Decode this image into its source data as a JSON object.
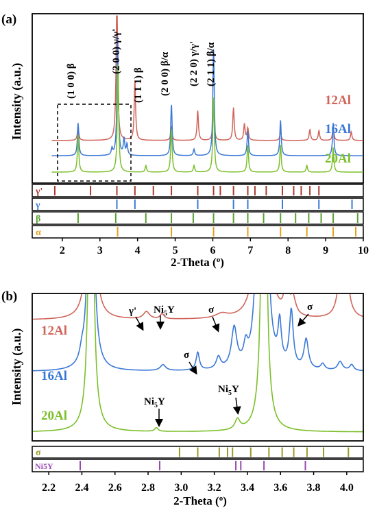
{
  "chart_data": [
    {
      "panel_label": "(a)",
      "type": "line",
      "xlabel": "2-Theta (°)",
      "ylabel": "Intensity (a.u.)",
      "xlim": [
        1.2,
        10.0
      ],
      "xticks": [
        2,
        3,
        4,
        5,
        6,
        7,
        8,
        9,
        10
      ],
      "series": [
        {
          "name": "12Al",
          "color": "#d0645a",
          "baseline": 0.78,
          "peaks": [
            [
              2.42,
              0.25
            ],
            [
              3.45,
              3.0
            ],
            [
              3.93,
              1.1
            ],
            [
              4.9,
              0.25
            ],
            [
              5.6,
              0.55
            ],
            [
              6.02,
              0.65
            ],
            [
              6.55,
              0.6
            ],
            [
              6.84,
              0.3
            ],
            [
              6.93,
              0.22
            ],
            [
              7.8,
              0.16
            ],
            [
              8.58,
              0.2
            ],
            [
              8.82,
              0.18
            ],
            [
              9.2,
              0.25
            ],
            [
              9.68,
              0.16
            ]
          ]
        },
        {
          "name": "16Al",
          "color": "#3a78d6",
          "baseline": 0.5,
          "peaks": [
            [
              2.42,
              0.6
            ],
            [
              3.32,
              0.12
            ],
            [
              3.47,
              2.2
            ],
            [
              3.64,
              0.3
            ],
            [
              3.72,
              0.2
            ],
            [
              4.9,
              0.95
            ],
            [
              5.5,
              0.12
            ],
            [
              6.02,
              2.0
            ],
            [
              6.93,
              0.45
            ],
            [
              7.8,
              0.65
            ],
            [
              9.2,
              0.6
            ]
          ]
        },
        {
          "name": "20Al",
          "color": "#7bbf2a",
          "baseline": 0.2,
          "peaks": [
            [
              2.42,
              0.68
            ],
            [
              3.48,
              2.0
            ],
            [
              4.22,
              0.12
            ],
            [
              4.9,
              0.8
            ],
            [
              5.5,
              0.12
            ],
            [
              6.02,
              1.4
            ],
            [
              6.93,
              0.5
            ],
            [
              7.8,
              0.5
            ],
            [
              8.5,
              0.12
            ],
            [
              9.2,
              0.45
            ]
          ]
        }
      ],
      "annotations": [
        "(1 0 0) β",
        "(2 0 0) γ/γ'",
        "(1 1 1) β",
        "(2 0 0) β/α",
        "(2 2 0) γ/γ'",
        "(2 1 1) β/α"
      ],
      "reference_phases": [
        {
          "name": "γ'",
          "color": "#a83a2e",
          "positions": [
            1.8,
            2.75,
            3.45,
            3.93,
            4.42,
            4.9,
            5.6,
            6.02,
            6.2,
            6.55,
            6.93,
            7.12,
            7.42,
            7.85,
            8.15,
            8.35,
            8.58,
            8.82
          ]
        },
        {
          "name": "γ",
          "color": "#3a78d6",
          "positions": [
            3.45,
            3.93,
            5.6,
            6.55,
            6.93,
            7.85,
            8.82,
            9.7
          ]
        },
        {
          "name": "β",
          "color": "#58a030",
          "positions": [
            2.42,
            3.42,
            4.22,
            4.9,
            5.48,
            6.02,
            6.55,
            6.93,
            7.35,
            7.8,
            8.2,
            8.55,
            8.88,
            9.2,
            9.85
          ]
        },
        {
          "name": "α",
          "color": "#e0a020",
          "positions": [
            3.47,
            4.9,
            6.02,
            6.93,
            7.8,
            8.5,
            9.2,
            9.8
          ]
        }
      ]
    },
    {
      "panel_label": "(b)",
      "type": "line",
      "xlabel": "2-Theta (°)",
      "ylabel": "Intensity (a.u.)",
      "xlim": [
        2.1,
        4.1
      ],
      "xticks": [
        2.2,
        2.4,
        2.6,
        2.8,
        3.0,
        3.2,
        3.4,
        3.6,
        3.8,
        4.0
      ],
      "series": [
        {
          "name": "12Al",
          "color": "#d0645a",
          "baseline": 0.82
        },
        {
          "name": "16Al",
          "color": "#3a78d6",
          "baseline": 0.47
        },
        {
          "name": "20Al",
          "color": "#7bbf2a",
          "baseline": 0.06
        }
      ],
      "annotations": [
        "γ'",
        "Ni5Y",
        "σ",
        "σ",
        "σ",
        "Ni5Y",
        "Ni5Y"
      ],
      "reference_phases": [
        {
          "name": "σ",
          "color": "#9a9a28",
          "positions": [
            2.99,
            3.1,
            3.23,
            3.28,
            3.31,
            3.42,
            3.53,
            3.61,
            3.68,
            3.76,
            3.86,
            4.01
          ]
        },
        {
          "name": "Ni5Y",
          "color": "#9848b0",
          "positions": [
            2.39,
            2.87,
            3.33,
            3.36,
            3.5,
            3.75
          ]
        }
      ]
    }
  ],
  "panel_a": {
    "label": "(a)",
    "ylabel": "Intensity (a.u.)",
    "xlabel": "2-Theta (",
    "xlabel_unit_sup": "o",
    "xlabel_close": ")",
    "xticks": [
      "2",
      "3",
      "4",
      "5",
      "6",
      "7",
      "8",
      "9",
      "10"
    ],
    "series_labels": [
      "12Al",
      "16Al",
      "20Al"
    ],
    "peak_labels": [
      "(1 0 0) β",
      "(2 0 0) γ/γ'",
      "(1 1 1) β",
      "(2 0 0) β/α",
      "(2 2 0) γ/γ'",
      "(2 1 1) β/α"
    ],
    "phase_labels": [
      "γ'",
      "γ",
      "β",
      "α"
    ]
  },
  "panel_b": {
    "label": "(b)",
    "ylabel": "Intensity (a.u.)",
    "xlabel": "2-Theta (",
    "xlabel_unit_sup": "o",
    "xlabel_close": ")",
    "xticks": [
      "2.2",
      "2.4",
      "2.6",
      "2.8",
      "3.0",
      "3.2",
      "3.4",
      "3.6",
      "3.8",
      "4.0"
    ],
    "series_labels": [
      "12Al",
      "16Al",
      "20Al"
    ],
    "annot_gamma_prime": "γ'",
    "annot_ni5y": "Ni",
    "annot_ni5y_sub": "5",
    "annot_ni5y_tail": "Y",
    "annot_sigma": "σ",
    "phase_labels": [
      "σ",
      "Ni5Y"
    ]
  }
}
